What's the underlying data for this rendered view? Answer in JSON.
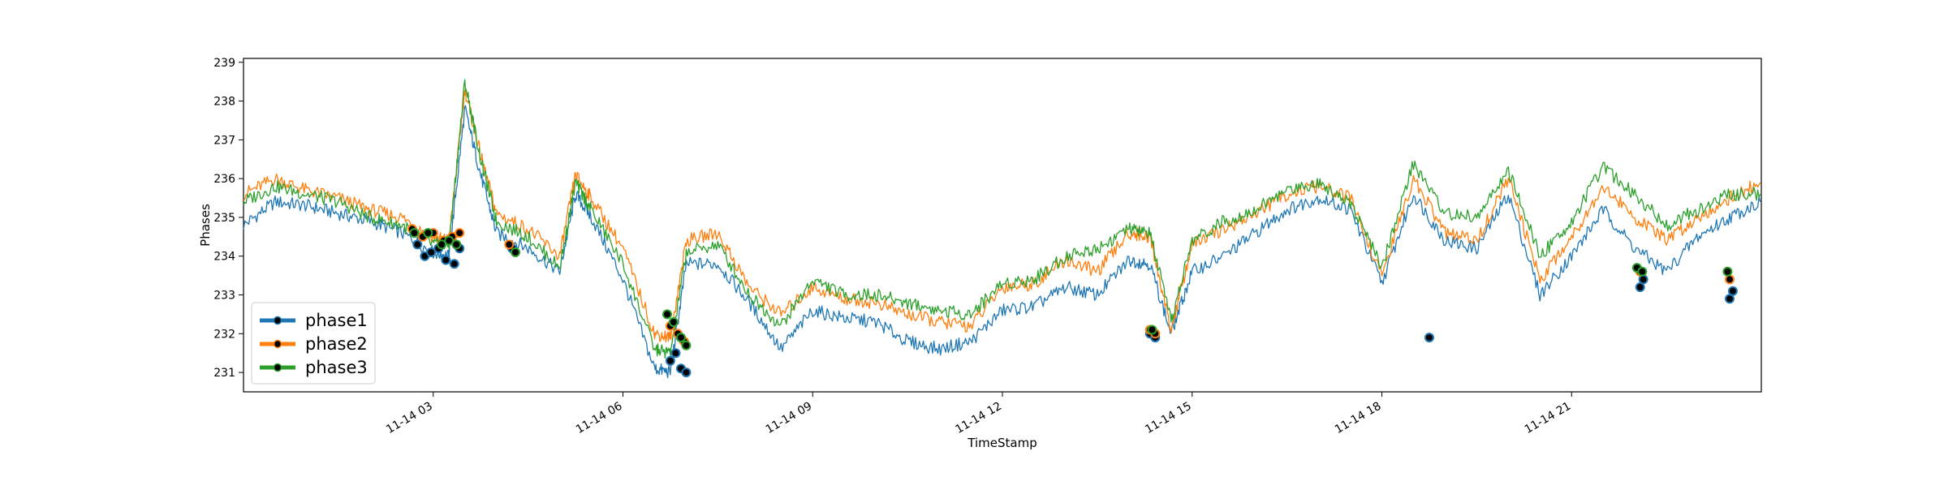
{
  "chart_data": {
    "type": "line",
    "title": "",
    "xlabel": "TimeStamp",
    "ylabel": "Phases",
    "xlim": [
      "2022-11-14 00:00",
      "2022-11-15 00:00"
    ],
    "ylim": [
      230.5,
      239.1
    ],
    "x_ticks": [
      {
        "t": "2022-11-14 03:00",
        "label": "11-14 03"
      },
      {
        "t": "2022-11-14 06:00",
        "label": "11-14 06"
      },
      {
        "t": "2022-11-14 09:00",
        "label": "11-14 09"
      },
      {
        "t": "2022-11-14 12:00",
        "label": "11-14 12"
      },
      {
        "t": "2022-11-14 15:00",
        "label": "11-14 15"
      },
      {
        "t": "2022-11-14 18:00",
        "label": "11-14 18"
      },
      {
        "t": "2022-11-14 21:00",
        "label": "11-14 21"
      }
    ],
    "y_ticks": [
      231,
      232,
      233,
      234,
      235,
      236,
      237,
      238,
      239
    ],
    "grid": false,
    "legend": {
      "placement": "lower-left"
    },
    "x": [
      "2022-11-14 00:00",
      "2022-11-14 00:30",
      "2022-11-14 01:00",
      "2022-11-14 01:30",
      "2022-11-14 02:00",
      "2022-11-14 02:30",
      "2022-11-14 03:00",
      "2022-11-14 03:15",
      "2022-11-14 03:30",
      "2022-11-14 03:45",
      "2022-11-14 04:00",
      "2022-11-14 04:30",
      "2022-11-14 05:00",
      "2022-11-14 05:15",
      "2022-11-14 05:30",
      "2022-11-14 06:00",
      "2022-11-14 06:30",
      "2022-11-14 06:45",
      "2022-11-14 07:00",
      "2022-11-14 07:30",
      "2022-11-14 08:00",
      "2022-11-14 08:30",
      "2022-11-14 09:00",
      "2022-11-14 09:30",
      "2022-11-14 10:00",
      "2022-11-14 10:30",
      "2022-11-14 11:00",
      "2022-11-14 11:30",
      "2022-11-14 12:00",
      "2022-11-14 12:30",
      "2022-11-14 13:00",
      "2022-11-14 13:30",
      "2022-11-14 14:00",
      "2022-11-14 14:20",
      "2022-11-14 14:40",
      "2022-11-14 15:00",
      "2022-11-14 15:30",
      "2022-11-14 16:00",
      "2022-11-14 16:30",
      "2022-11-14 17:00",
      "2022-11-14 17:30",
      "2022-11-14 18:00",
      "2022-11-14 18:30",
      "2022-11-14 19:00",
      "2022-11-14 19:30",
      "2022-11-14 20:00",
      "2022-11-14 20:30",
      "2022-11-14 21:00",
      "2022-11-14 21:30",
      "2022-11-14 22:00",
      "2022-11-14 22:30",
      "2022-11-14 23:00",
      "2022-11-14 23:30",
      "2022-11-14 23:59"
    ],
    "series": [
      {
        "name": "phase1",
        "color": "#1f77b4",
        "values": [
          234.8,
          235.4,
          235.3,
          235.1,
          234.9,
          234.6,
          234.1,
          234.0,
          237.8,
          236.1,
          234.6,
          234.2,
          233.6,
          235.6,
          235.0,
          233.4,
          231.1,
          231.0,
          233.8,
          233.8,
          232.8,
          231.6,
          232.6,
          232.4,
          232.3,
          231.8,
          231.6,
          231.8,
          232.6,
          232.7,
          233.2,
          233.0,
          233.9,
          233.8,
          232.0,
          233.6,
          234.0,
          234.6,
          235.2,
          235.5,
          235.2,
          233.3,
          235.6,
          234.4,
          234.2,
          235.6,
          233.0,
          234.0,
          235.2,
          234.2,
          233.6,
          234.5,
          235.0,
          235.4
        ]
      },
      {
        "name": "phase2",
        "color": "#ff7f0e",
        "values": [
          235.6,
          236.0,
          235.7,
          235.5,
          235.2,
          235.0,
          234.5,
          234.4,
          238.3,
          236.6,
          235.1,
          234.7,
          234.0,
          236.1,
          235.5,
          234.2,
          232.0,
          231.9,
          234.4,
          234.6,
          233.2,
          232.5,
          233.2,
          232.9,
          232.8,
          232.5,
          232.3,
          232.2,
          233.2,
          233.3,
          233.9,
          233.6,
          234.6,
          234.5,
          232.1,
          234.3,
          234.7,
          235.1,
          235.6,
          235.8,
          235.5,
          233.5,
          236.0,
          234.6,
          234.4,
          236.0,
          233.4,
          234.5,
          235.8,
          235.0,
          234.4,
          235.0,
          235.5,
          235.9
        ]
      },
      {
        "name": "phase3",
        "color": "#2ca02c",
        "values": [
          235.4,
          235.8,
          235.6,
          235.4,
          235.0,
          234.8,
          234.3,
          234.3,
          238.5,
          236.5,
          234.9,
          234.5,
          233.7,
          235.9,
          235.2,
          233.8,
          231.6,
          231.5,
          234.1,
          234.3,
          233.0,
          232.2,
          233.4,
          233.0,
          233.0,
          232.8,
          232.6,
          232.5,
          233.3,
          233.4,
          234.0,
          234.2,
          234.7,
          234.6,
          232.3,
          234.4,
          234.9,
          235.2,
          235.7,
          235.9,
          235.4,
          233.7,
          236.4,
          235.1,
          235.0,
          236.2,
          234.0,
          234.9,
          236.3,
          235.6,
          234.8,
          235.2,
          235.6,
          235.6
        ]
      }
    ],
    "anomalies": [
      {
        "series": "phase1",
        "x": [
          "2022-11-14 02:45",
          "2022-11-14 02:52",
          "2022-11-14 02:58",
          "2022-11-14 03:05",
          "2022-11-14 03:12",
          "2022-11-14 03:20",
          "2022-11-14 03:25",
          "2022-11-14 04:15",
          "2022-11-14 06:45",
          "2022-11-14 06:50",
          "2022-11-14 06:55",
          "2022-11-14 07:00",
          "2022-11-14 14:20",
          "2022-11-14 14:25",
          "2022-11-14 18:45",
          "2022-11-14 22:05",
          "2022-11-14 22:08",
          "2022-11-14 23:30",
          "2022-11-14 23:33"
        ],
        "y": [
          234.3,
          234.0,
          234.1,
          234.2,
          233.9,
          233.8,
          234.2,
          234.2,
          231.3,
          231.5,
          231.1,
          231.0,
          232.0,
          231.9,
          231.9,
          233.2,
          233.4,
          232.9,
          233.1
        ]
      },
      {
        "series": "phase2",
        "x": [
          "2022-11-14 02:40",
          "2022-11-14 02:50",
          "2022-11-14 03:00",
          "2022-11-14 03:10",
          "2022-11-14 03:18",
          "2022-11-14 03:25",
          "2022-11-14 04:12",
          "2022-11-14 06:45",
          "2022-11-14 06:52",
          "2022-11-14 06:58",
          "2022-11-14 14:20",
          "2022-11-14 14:25",
          "2022-11-14 22:05",
          "2022-11-14 23:30"
        ],
        "y": [
          234.7,
          234.5,
          234.6,
          234.4,
          234.5,
          234.6,
          234.3,
          232.2,
          232.0,
          231.8,
          232.1,
          232.0,
          233.6,
          233.4
        ]
      },
      {
        "series": "phase3",
        "x": [
          "2022-11-14 02:42",
          "2022-11-14 02:55",
          "2022-11-14 03:08",
          "2022-11-14 03:15",
          "2022-11-14 03:22",
          "2022-11-14 04:18",
          "2022-11-14 06:42",
          "2022-11-14 06:48",
          "2022-11-14 06:55",
          "2022-11-14 07:00",
          "2022-11-14 14:22",
          "2022-11-14 22:02",
          "2022-11-14 22:07",
          "2022-11-14 23:28"
        ],
        "y": [
          234.6,
          234.6,
          234.3,
          234.4,
          234.3,
          234.1,
          232.5,
          232.3,
          231.9,
          231.7,
          232.1,
          233.7,
          233.6,
          233.6
        ]
      }
    ]
  }
}
